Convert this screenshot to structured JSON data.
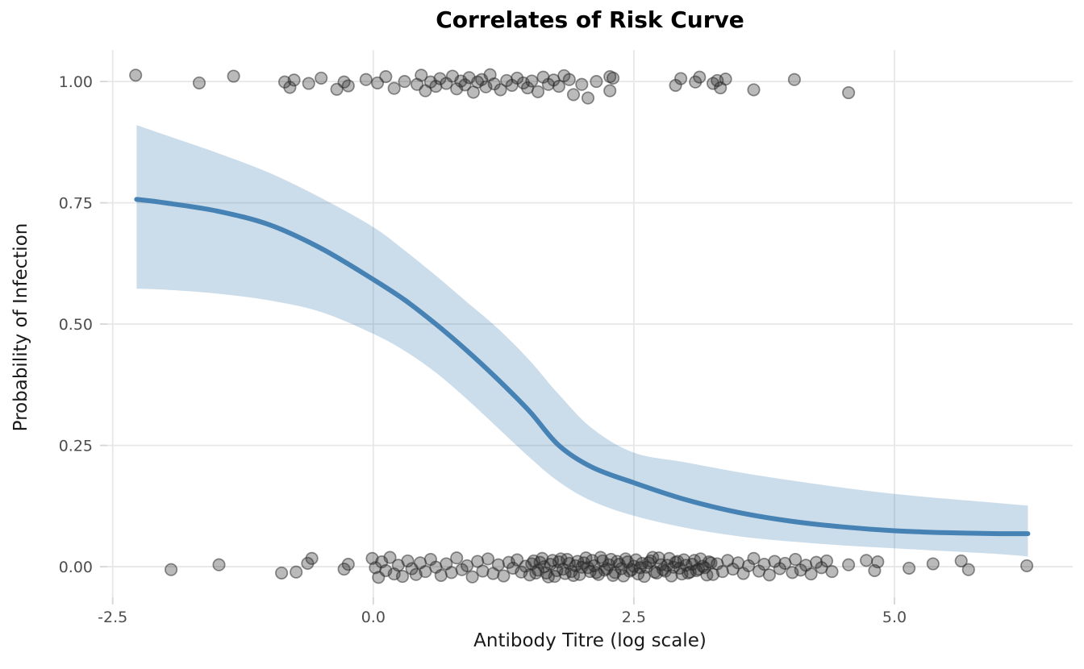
{
  "figure": {
    "title": "Correlates of Risk Curve",
    "x_axis_title": "Antibody Titre (log scale)",
    "y_axis_title": "Probability of Infection"
  },
  "chart_data": {
    "type": "scatter",
    "title": "Correlates of Risk Curve",
    "xlabel": "Antibody Titre (log scale)",
    "ylabel": "Probability of Infection",
    "grid": {
      "major": true,
      "minor": false
    },
    "legend": "none",
    "x_axis": {
      "min": -2.552,
      "max": 6.71,
      "ticks": [
        -2.5,
        0.0,
        2.5,
        5.0
      ],
      "tick_labels": [
        "-2.5",
        "0.0",
        "2.5",
        "5.0"
      ]
    },
    "y_axis": {
      "min": -0.063,
      "max": 1.065,
      "ticks": [
        0.0,
        0.25,
        0.5,
        0.75,
        1.0
      ],
      "tick_labels": [
        "0.00",
        "0.25",
        "0.50",
        "0.75",
        "1.00"
      ]
    },
    "styles": {
      "curve_color": "#4682b4",
      "curve_width": 6,
      "ribbon_fill": "rgba(70,130,180,0.28)",
      "point_fill": "rgba(40,40,40,0.32)",
      "point_stroke": "rgba(40,40,40,0.52)",
      "point_radius": 7.2,
      "gridline_color": "#e7e7e7",
      "tick_color": "#d6d6d6",
      "tick_label_color": "#4d4d4d"
    },
    "fit_curve": {
      "name": "logistic fit curve",
      "x": [
        -2.27,
        -2.0,
        -1.5,
        -1.0,
        -0.5,
        0,
        0.3,
        0.6,
        0.9,
        1.2,
        1.5,
        1.78,
        2.1,
        2.5,
        3.0,
        3.5,
        4.0,
        4.5,
        5.0,
        5.5,
        6.0,
        6.28
      ],
      "y": [
        0.757,
        0.75,
        0.733,
        0.705,
        0.656,
        0.592,
        0.55,
        0.5,
        0.445,
        0.385,
        0.32,
        0.25,
        0.205,
        0.173,
        0.138,
        0.112,
        0.094,
        0.082,
        0.074,
        0.07,
        0.068,
        0.068
      ]
    },
    "confidence_ribbon": {
      "name": "confidence ribbon",
      "x": [
        -2.27,
        -2.0,
        -1.5,
        -1.0,
        -0.5,
        0,
        0.3,
        0.6,
        0.9,
        1.2,
        1.5,
        1.78,
        2.1,
        2.5,
        3.0,
        3.5,
        4.0,
        4.5,
        5.0,
        5.5,
        6.0,
        6.28
      ],
      "upper": [
        0.91,
        0.89,
        0.853,
        0.812,
        0.76,
        0.7,
        0.652,
        0.6,
        0.545,
        0.49,
        0.425,
        0.355,
        0.285,
        0.235,
        0.215,
        0.195,
        0.178,
        0.163,
        0.15,
        0.14,
        0.131,
        0.126
      ],
      "lower": [
        0.573,
        0.571,
        0.563,
        0.549,
        0.525,
        0.48,
        0.445,
        0.4,
        0.345,
        0.285,
        0.225,
        0.175,
        0.135,
        0.105,
        0.08,
        0.063,
        0.052,
        0.044,
        0.038,
        0.032,
        0.026,
        0.021
      ]
    },
    "points_y1": {
      "name": "jittered observations near probability 1",
      "points": [
        [
          -2.28,
          1.013
        ],
        [
          -1.67,
          0.997
        ],
        [
          -1.34,
          1.011
        ],
        [
          -0.85,
          0.999
        ],
        [
          -0.8,
          0.988
        ],
        [
          -0.76,
          1.003
        ],
        [
          -0.62,
          0.996
        ],
        [
          -0.5,
          1.007
        ],
        [
          -0.35,
          0.984
        ],
        [
          -0.28,
          0.999
        ],
        [
          -0.24,
          0.991
        ],
        [
          -0.07,
          1.004
        ],
        [
          0.04,
          0.997
        ],
        [
          0.12,
          1.01
        ],
        [
          0.2,
          0.986
        ],
        [
          0.3,
          1.0
        ],
        [
          0.42,
          0.994
        ],
        [
          0.46,
          1.013
        ],
        [
          0.5,
          0.981
        ],
        [
          0.55,
          0.999
        ],
        [
          0.6,
          0.99
        ],
        [
          0.64,
          1.006
        ],
        [
          0.7,
          0.996
        ],
        [
          0.76,
          1.011
        ],
        [
          0.8,
          0.985
        ],
        [
          0.84,
          1.001
        ],
        [
          0.88,
          0.993
        ],
        [
          0.92,
          1.008
        ],
        [
          0.96,
          0.978
        ],
        [
          1.0,
          0.999
        ],
        [
          1.04,
          1.004
        ],
        [
          1.08,
          0.989
        ],
        [
          1.12,
          1.014
        ],
        [
          1.16,
          0.995
        ],
        [
          1.22,
          0.983
        ],
        [
          1.28,
          1.002
        ],
        [
          1.33,
          0.992
        ],
        [
          1.38,
          1.007
        ],
        [
          1.44,
          0.997
        ],
        [
          1.48,
          0.987
        ],
        [
          1.52,
          1.001
        ],
        [
          1.58,
          0.979
        ],
        [
          1.63,
          1.009
        ],
        [
          1.68,
          0.994
        ],
        [
          1.73,
          1.003
        ],
        [
          1.78,
          0.99
        ],
        [
          1.83,
          1.012
        ],
        [
          1.88,
          1.004
        ],
        [
          1.92,
          0.973
        ],
        [
          2.0,
          0.994
        ],
        [
          2.06,
          0.966
        ],
        [
          2.14,
          1.0
        ],
        [
          2.27,
          1.01
        ],
        [
          2.3,
          1.007
        ],
        [
          2.27,
          0.981
        ],
        [
          2.9,
          0.992
        ],
        [
          2.95,
          1.006
        ],
        [
          3.09,
          0.999
        ],
        [
          3.13,
          1.009
        ],
        [
          3.26,
          0.996
        ],
        [
          3.3,
          1.002
        ],
        [
          3.33,
          0.987
        ],
        [
          3.38,
          1.005
        ],
        [
          3.65,
          0.983
        ],
        [
          4.04,
          1.004
        ],
        [
          4.56,
          0.977
        ]
      ]
    },
    "points_y0": {
      "name": "jittered observations near probability 0",
      "points": [
        [
          -1.94,
          -0.006
        ],
        [
          -1.48,
          0.004
        ],
        [
          -0.88,
          -0.013
        ],
        [
          -0.74,
          -0.011
        ],
        [
          -0.63,
          0.007
        ],
        [
          -0.59,
          0.017
        ],
        [
          -0.28,
          -0.005
        ],
        [
          -0.24,
          0.005
        ],
        [
          -0.01,
          0.017
        ],
        [
          0.02,
          -0.002
        ],
        [
          0.05,
          -0.022
        ],
        [
          0.08,
          0.01
        ],
        [
          0.12,
          -0.008
        ],
        [
          0.16,
          0.019
        ],
        [
          0.2,
          -0.015
        ],
        [
          0.24,
          0.003
        ],
        [
          0.28,
          -0.02
        ],
        [
          0.33,
          0.012
        ],
        [
          0.37,
          -0.004
        ],
        [
          0.41,
          -0.016
        ],
        [
          0.45,
          0.008
        ],
        [
          0.5,
          -0.01
        ],
        [
          0.55,
          0.015
        ],
        [
          0.6,
          -0.001
        ],
        [
          0.65,
          -0.018
        ],
        [
          0.7,
          0.006
        ],
        [
          0.75,
          -0.012
        ],
        [
          0.8,
          0.018
        ],
        [
          0.85,
          -0.006
        ],
        [
          0.9,
          0.002
        ],
        [
          0.95,
          -0.021
        ],
        [
          1.0,
          0.011
        ],
        [
          1.05,
          -0.009
        ],
        [
          1.1,
          0.016
        ],
        [
          1.15,
          -0.014
        ],
        [
          1.2,
          0.004
        ],
        [
          1.25,
          -0.019
        ],
        [
          1.3,
          0.009
        ],
        [
          1.34,
          -0.003
        ],
        [
          1.38,
          0.014
        ],
        [
          1.42,
          -0.011
        ],
        [
          1.46,
          0.001
        ],
        [
          1.5,
          -0.017
        ],
        [
          1.52,
          0.006
        ],
        [
          1.54,
          0.012
        ],
        [
          1.56,
          -0.013
        ],
        [
          1.58,
          -0.007
        ],
        [
          1.6,
          0.009
        ],
        [
          1.62,
          0.017
        ],
        [
          1.64,
          0.0
        ],
        [
          1.66,
          -0.013
        ],
        [
          1.68,
          -0.021
        ],
        [
          1.7,
          0.005
        ],
        [
          1.72,
          0.013
        ],
        [
          1.74,
          -0.02
        ],
        [
          1.76,
          -0.008
        ],
        [
          1.78,
          0.01
        ],
        [
          1.8,
          0.016
        ],
        [
          1.82,
          -0.005
        ],
        [
          1.84,
          -0.014
        ],
        [
          1.86,
          0.015
        ],
        [
          1.88,
          0.007
        ],
        [
          1.9,
          -0.01
        ],
        [
          1.92,
          -0.018
        ],
        [
          1.94,
          0.002
        ],
        [
          1.96,
          0.011
        ],
        [
          1.98,
          -0.016
        ],
        [
          2.0,
          -0.001
        ],
        [
          2.02,
          0.008
        ],
        [
          2.04,
          0.018
        ],
        [
          2.06,
          -0.002
        ],
        [
          2.08,
          -0.01
        ],
        [
          2.1,
          0.013
        ],
        [
          2.12,
          0.002
        ],
        [
          2.14,
          -0.012
        ],
        [
          2.16,
          -0.016
        ],
        [
          2.18,
          0.019
        ],
        [
          2.2,
          0.012
        ],
        [
          2.22,
          -0.007
        ],
        [
          2.24,
          -0.004
        ],
        [
          2.26,
          0.004
        ],
        [
          2.28,
          0.015
        ],
        [
          2.3,
          -0.018
        ],
        [
          2.32,
          -0.012
        ],
        [
          2.34,
          0.011
        ],
        [
          2.36,
          0.005
        ],
        [
          2.38,
          -0.004
        ],
        [
          2.4,
          -0.019
        ],
        [
          2.42,
          0.016
        ],
        [
          2.44,
          0.01
        ],
        [
          2.46,
          -0.009
        ],
        [
          2.48,
          -0.006
        ],
        [
          2.5,
          0.001
        ],
        [
          2.52,
          0.014
        ],
        [
          2.54,
          -0.015
        ],
        [
          2.56,
          -0.002
        ],
        [
          2.58,
          0.007
        ],
        [
          2.6,
          -0.02
        ],
        [
          2.62,
          -0.001
        ],
        [
          2.64,
          0.008
        ],
        [
          2.66,
          0.012
        ],
        [
          2.68,
          0.019
        ],
        [
          2.7,
          -0.011
        ],
        [
          2.72,
          -0.013
        ],
        [
          2.74,
          0.018
        ],
        [
          2.76,
          0.004
        ],
        [
          2.78,
          -0.006
        ],
        [
          2.8,
          -0.009
        ],
        [
          2.82,
          0.003
        ],
        [
          2.84,
          0.017
        ],
        [
          2.86,
          -0.019
        ],
        [
          2.88,
          -0.001
        ],
        [
          2.9,
          0.009
        ],
        [
          2.92,
          0.011
        ],
        [
          2.94,
          -0.003
        ],
        [
          2.96,
          -0.015
        ],
        [
          2.98,
          0.014
        ],
        [
          3.0,
          0.003
        ],
        [
          3.02,
          -0.013
        ],
        [
          3.04,
          -0.011
        ],
        [
          3.06,
          0.005
        ],
        [
          3.08,
          0.013
        ],
        [
          3.1,
          -0.008
        ],
        [
          3.12,
          -0.005
        ],
        [
          3.14,
          0.016
        ],
        [
          3.16,
          0.001
        ],
        [
          3.18,
          -0.002
        ],
        [
          3.2,
          -0.017
        ],
        [
          3.22,
          0.01
        ],
        [
          3.24,
          0.008
        ],
        [
          3.26,
          -0.016
        ],
        [
          3.3,
          0.006
        ],
        [
          3.35,
          -0.01
        ],
        [
          3.4,
          0.013
        ],
        [
          3.45,
          -0.005
        ],
        [
          3.5,
          0.008
        ],
        [
          3.55,
          -0.014
        ],
        [
          3.6,
          0.002
        ],
        [
          3.65,
          0.017
        ],
        [
          3.7,
          -0.009
        ],
        [
          3.75,
          0.005
        ],
        [
          3.8,
          -0.017
        ],
        [
          3.85,
          0.011
        ],
        [
          3.9,
          -0.004
        ],
        [
          3.95,
          0.007
        ],
        [
          4.02,
          -0.012
        ],
        [
          4.05,
          0.015
        ],
        [
          4.1,
          -0.007
        ],
        [
          4.15,
          0.003
        ],
        [
          4.2,
          -0.015
        ],
        [
          4.25,
          0.009
        ],
        [
          4.3,
          -0.002
        ],
        [
          4.35,
          0.012
        ],
        [
          4.4,
          -0.01
        ],
        [
          4.56,
          0.004
        ],
        [
          4.73,
          0.013
        ],
        [
          4.81,
          -0.008
        ],
        [
          4.84,
          0.01
        ],
        [
          5.14,
          -0.003
        ],
        [
          5.37,
          0.006
        ],
        [
          5.64,
          0.012
        ],
        [
          5.71,
          -0.006
        ],
        [
          6.27,
          0.002
        ]
      ]
    }
  }
}
